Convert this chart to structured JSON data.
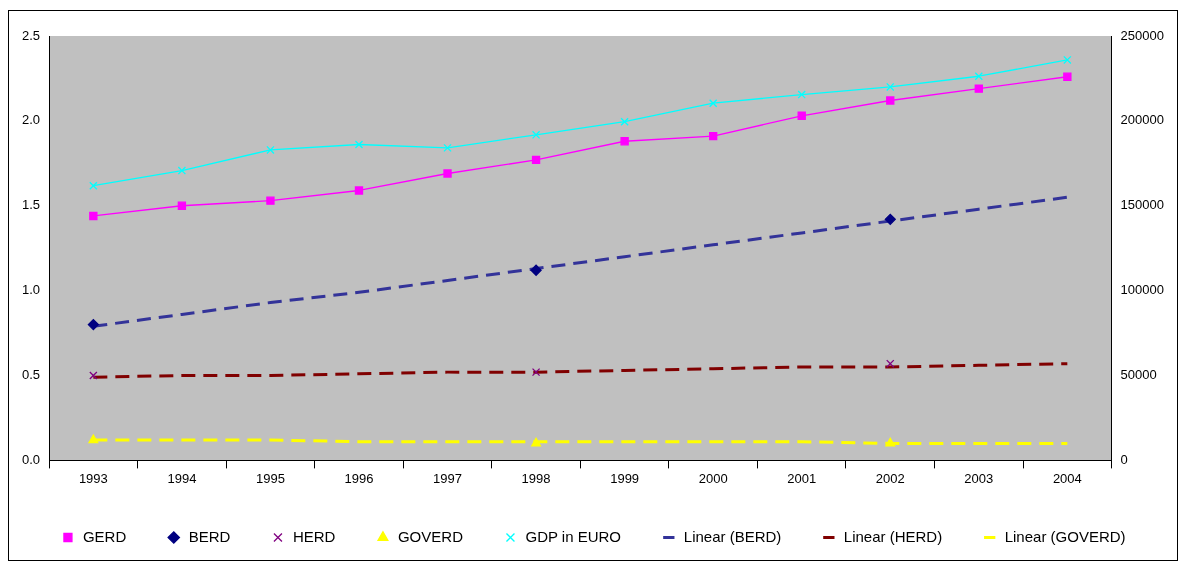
{
  "chart_data": {
    "type": "line",
    "categories": [
      "1993",
      "1994",
      "1995",
      "1996",
      "1997",
      "1998",
      "1999",
      "2000",
      "2001",
      "2002",
      "2003",
      "2004"
    ],
    "series": [
      {
        "name": "GERD",
        "color": "#ff00ff",
        "marker": "square",
        "line_style": "solid",
        "values": [
          1.44,
          1.5,
          1.53,
          1.59,
          1.69,
          1.77,
          1.88,
          1.91,
          2.03,
          2.12,
          2.19,
          2.26
        ]
      },
      {
        "name": "BERD",
        "type": "scatter",
        "color": "#000080",
        "marker": "diamond",
        "values": [
          0.8,
          null,
          null,
          null,
          null,
          1.12,
          null,
          null,
          null,
          1.42,
          null,
          null
        ]
      },
      {
        "name": "HERD",
        "type": "scatter",
        "color": "#800080",
        "marker": "cross",
        "values": [
          0.5,
          null,
          null,
          null,
          null,
          0.52,
          null,
          null,
          null,
          0.57,
          null,
          null
        ]
      },
      {
        "name": "GOVERD",
        "type": "scatter",
        "color": "#ffff00",
        "marker": "triangle",
        "values": [
          0.12,
          null,
          null,
          null,
          null,
          0.1,
          null,
          null,
          null,
          0.1,
          null,
          null
        ]
      },
      {
        "name": "GDP in EURO",
        "color": "#00ffff",
        "marker": "cross",
        "line_style": "solid",
        "axis": "y2",
        "values": [
          161800,
          170700,
          182900,
          186100,
          184100,
          191800,
          199500,
          210400,
          215500,
          220000,
          226300,
          235900
        ]
      },
      {
        "name": "Linear (BERD)",
        "color": "#333399",
        "marker": "none",
        "line_style": "dashed",
        "values": [
          0.79,
          0.86,
          0.93,
          0.99,
          1.06,
          1.13,
          1.2,
          1.27,
          1.34,
          1.41,
          1.48,
          1.55
        ]
      },
      {
        "name": "Linear (HERD)",
        "color": "#800000",
        "marker": "none",
        "line_style": "dashed",
        "values": [
          0.49,
          0.5,
          0.5,
          0.51,
          0.52,
          0.52,
          0.53,
          0.54,
          0.55,
          0.55,
          0.56,
          0.57
        ]
      },
      {
        "name": "Linear (GOVERD)",
        "color": "#ffff00",
        "marker": "none",
        "line_style": "dashed",
        "values": [
          0.12,
          0.12,
          0.12,
          0.11,
          0.11,
          0.11,
          0.11,
          0.11,
          0.11,
          0.1,
          0.1,
          0.1
        ]
      }
    ],
    "ylim": [
      0,
      2.5
    ],
    "yticks": [
      {
        "value": 0,
        "label": "0.0"
      },
      {
        "value": 0.5,
        "label": "0.5"
      },
      {
        "value": 1,
        "label": "1.0"
      },
      {
        "value": 1.5,
        "label": "1.5"
      },
      {
        "value": 2,
        "label": "2.0"
      },
      {
        "value": 2.5,
        "label": "2.5"
      }
    ],
    "y2lim": [
      0,
      250000
    ],
    "y2ticks": [
      0,
      50000,
      100000,
      150000,
      200000,
      250000
    ],
    "grid": false,
    "legend": "bottom"
  }
}
